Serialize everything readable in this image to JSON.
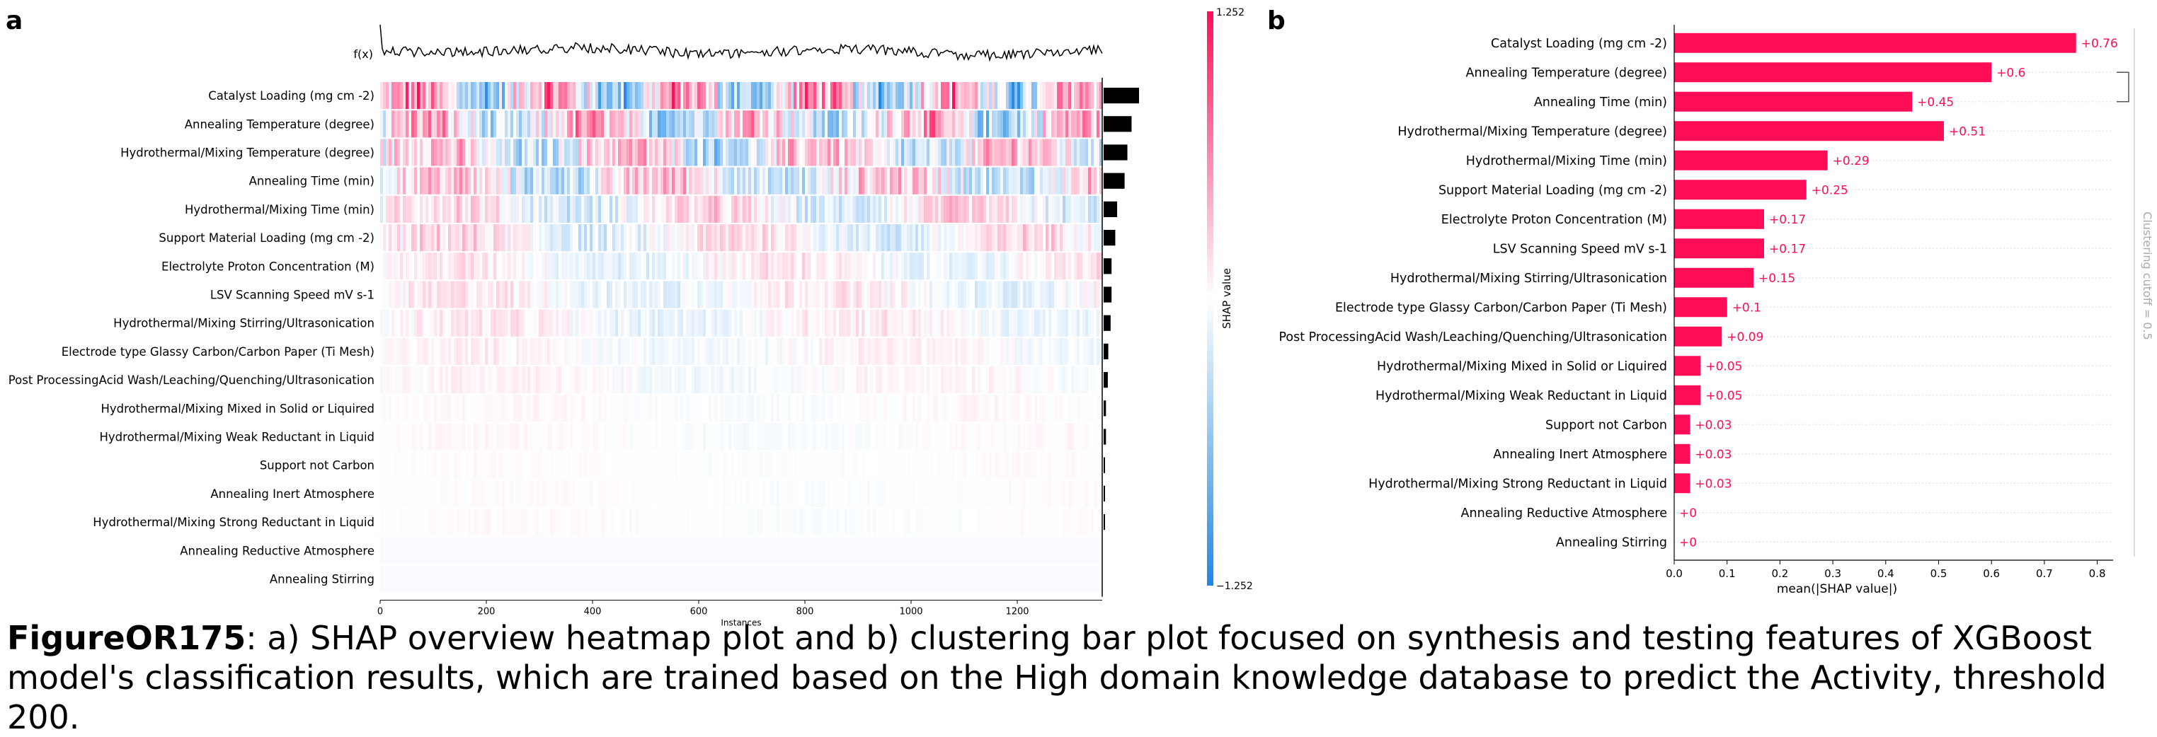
{
  "figure": {
    "panel_a_letter": "a",
    "panel_b_letter": "b",
    "caption_lead": "FigureOR175",
    "caption_text": ": a) SHAP overview heatmap plot and b) clustering bar plot focused on synthesis and testing features of XGBoost model's classification results, which are trained based on the High domain knowledge database to predict the Activity, threshold 200."
  },
  "colors": {
    "positive": "#ff0d57",
    "negative": "#1e88e5",
    "neutral": "#ffffff",
    "bar_label": "#ff0d57",
    "cutoff_text": "#aaaaaa"
  },
  "chart_data": [
    {
      "type": "heatmap",
      "panel": "a",
      "features": [
        "Catalyst Loading (mg cm -2)",
        "Annealing Temperature (degree)",
        "Hydrothermal/Mixing Temperature (degree)",
        "Annealing Time (min)",
        "Hydrothermal/Mixing Time (min)",
        "Support Material Loading (mg cm -2)",
        "Electrolyte Proton Concentration (M)",
        "LSV Scanning Speed mV s-1",
        "Hydrothermal/Mixing Stirring/Ultrasonication",
        "Electrode type Glassy Carbon/Carbon Paper (Ti Mesh)",
        "Post ProcessingAcid Wash/Leaching/Quenching/Ultrasonication",
        "Hydrothermal/Mixing Mixed in Solid or Liquired",
        "Hydrothermal/Mixing Weak Reductant in Liquid",
        "Support not Carbon",
        "Annealing Inert Atmosphere",
        "Hydrothermal/Mixing Strong Reductant in Liquid",
        "Annealing Reductive Atmosphere",
        "Annealing Stirring"
      ],
      "feature_importance": [
        0.76,
        0.6,
        0.51,
        0.45,
        0.29,
        0.25,
        0.17,
        0.17,
        0.15,
        0.1,
        0.09,
        0.05,
        0.05,
        0.03,
        0.03,
        0.03,
        0.0,
        0.0
      ],
      "x_ticks": [
        0,
        200,
        400,
        600,
        800,
        1000,
        1200
      ],
      "xlim": [
        0,
        1360
      ],
      "xlabel": "Instances",
      "fx_label": "f(x)",
      "colorbar": {
        "label": "SHAP value",
        "max": "1.252",
        "min": "−1.252"
      }
    },
    {
      "type": "bar",
      "panel": "b",
      "categories": [
        "Catalyst Loading (mg cm -2)",
        "Annealing Temperature (degree)",
        "Annealing Time (min)",
        "Hydrothermal/Mixing Temperature (degree)",
        "Hydrothermal/Mixing Time (min)",
        "Support Material Loading (mg cm -2)",
        "Electrolyte Proton Concentration (M)",
        "LSV Scanning Speed mV s-1",
        "Hydrothermal/Mixing Stirring/Ultrasonication",
        "Electrode type Glassy Carbon/Carbon Paper (Ti Mesh)",
        "Post ProcessingAcid Wash/Leaching/Quenching/Ultrasonication",
        "Hydrothermal/Mixing Mixed in Solid or Liquired",
        "Hydrothermal/Mixing Weak Reductant in Liquid",
        "Support not Carbon",
        "Annealing Inert Atmosphere",
        "Hydrothermal/Mixing Strong Reductant in Liquid",
        "Annealing Reductive Atmosphere",
        "Annealing Stirring"
      ],
      "values": [
        0.76,
        0.6,
        0.45,
        0.51,
        0.29,
        0.25,
        0.17,
        0.17,
        0.15,
        0.1,
        0.09,
        0.05,
        0.05,
        0.03,
        0.03,
        0.03,
        0,
        0
      ],
      "value_labels": [
        "+0.76",
        "+0.6",
        "+0.45",
        "+0.51",
        "+0.29",
        "+0.25",
        "+0.17",
        "+0.17",
        "+0.15",
        "+0.1",
        "+0.09",
        "+0.05",
        "+0.05",
        "+0.03",
        "+0.03",
        "+0.03",
        "+0",
        "+0"
      ],
      "x_ticks": [
        "0.0",
        "0.1",
        "0.2",
        "0.3",
        "0.4",
        "0.5",
        "0.6",
        "0.7",
        "0.8"
      ],
      "xlim": [
        0,
        0.83
      ],
      "xlabel": "mean(|SHAP value|)",
      "cluster_label": "Clustering cutoff = 0.5",
      "cluster_bracket": [
        "Annealing Temperature (degree)",
        "Annealing Time (min)"
      ]
    }
  ]
}
